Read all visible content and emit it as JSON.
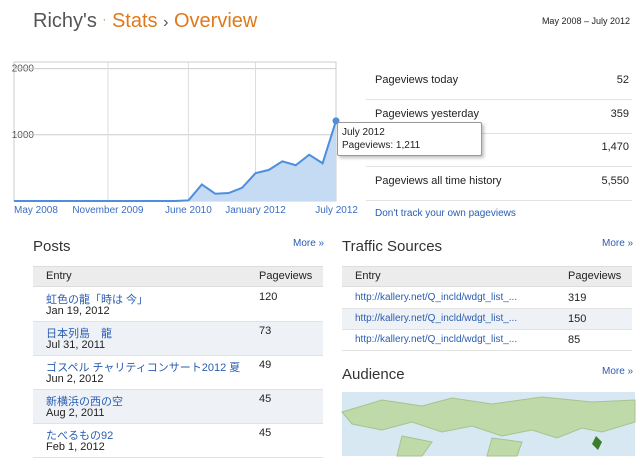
{
  "header": {
    "site": "Richy's",
    "separator": "·",
    "section": "Stats",
    "arrow": "›",
    "page": "Overview",
    "date_range": "May 2008 – July 2012"
  },
  "chart_data": {
    "type": "area",
    "categories": [
      "May 2008",
      null,
      null,
      null,
      null,
      null,
      null,
      "November 2009",
      null,
      null,
      null,
      null,
      null,
      "June 2010",
      null,
      null,
      null,
      null,
      "January 2012",
      null,
      null,
      null,
      null,
      null,
      "July 2012"
    ],
    "values": [
      0,
      0,
      0,
      0,
      0,
      0,
      0,
      0,
      0,
      0,
      0,
      0,
      0,
      10,
      250,
      110,
      120,
      200,
      420,
      470,
      600,
      540,
      700,
      570,
      1211
    ],
    "color": "#4d8fdc",
    "fill": "#c5daf3",
    "ylim": [
      0,
      2100
    ],
    "yticks": [
      1000,
      2000
    ],
    "grid": true,
    "tooltip": {
      "title": "July 2012",
      "label": "Pageviews: 1,211"
    }
  },
  "summary": {
    "rows": [
      {
        "label": "Pageviews today",
        "value": "52"
      },
      {
        "label": "Pageviews yesterday",
        "value": "359"
      },
      {
        "value": "1,470"
      },
      {
        "label": "Pageviews all time history",
        "value": "5,550"
      }
    ],
    "link": "Don't track your own pageviews"
  },
  "posts": {
    "title": "Posts",
    "more": "More »",
    "columns": [
      "Entry",
      "Pageviews"
    ],
    "rows": [
      {
        "title": "虹色の龍「時は 今」",
        "date": "Jan 19, 2012",
        "pageviews": "120"
      },
      {
        "title": "日本列島　龍",
        "date": "Jul 31, 2011",
        "pageviews": "73"
      },
      {
        "title": "ゴスペル チャリティコンサート2012 夏",
        "date": "Jun 2, 2012",
        "pageviews": "49"
      },
      {
        "title": "新横浜の西の空",
        "date": "Aug 2, 2011",
        "pageviews": "45"
      },
      {
        "title": "たべるもの92",
        "date": "Feb 1, 2012",
        "pageviews": "45"
      }
    ]
  },
  "traffic": {
    "title": "Traffic Sources",
    "more": "More »",
    "columns": [
      "Entry",
      "Pageviews"
    ],
    "rows": [
      {
        "source": "http://kallery.net/Q_incld/wdgt_list_...",
        "pageviews": "319"
      },
      {
        "source": "http://kallery.net/Q_incld/wdgt_list_...",
        "pageviews": "150"
      },
      {
        "source": "http://kallery.net/Q_incld/wdgt_list_...",
        "pageviews": "85"
      }
    ]
  },
  "audience": {
    "title": "Audience",
    "more": "More »"
  }
}
